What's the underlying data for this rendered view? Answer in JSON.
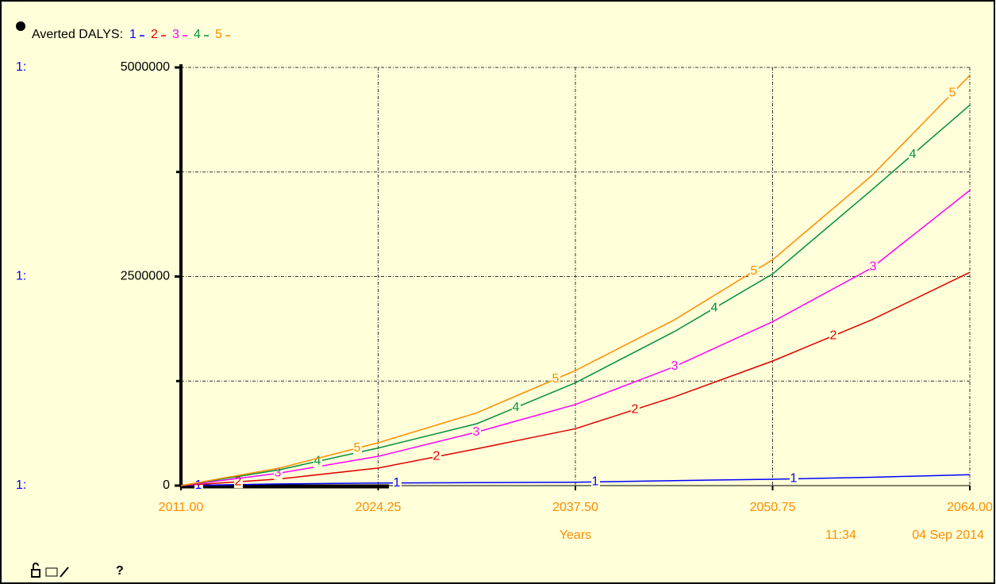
{
  "chart_data": {
    "type": "line",
    "title": "Averted DALYS:",
    "axis_prefix": "1:",
    "xlabel": "Years",
    "timestamp_time": "11:34",
    "timestamp_date": "04 Sep 2014",
    "help_label": "?",
    "x": [
      2011,
      2017.625,
      2024.25,
      2030.875,
      2037.5,
      2044.125,
      2050.75,
      2057.375,
      2064
    ],
    "series": [
      {
        "name": "1",
        "color": "#0000ff",
        "values": [
          0,
          20000,
          30000,
          35000,
          40000,
          60000,
          76000,
          100000,
          130000
        ]
      },
      {
        "name": "2",
        "color": "#e00000",
        "values": [
          0,
          80000,
          210000,
          440000,
          680000,
          1060000,
          1490000,
          1980000,
          2550000
        ]
      },
      {
        "name": "3",
        "color": "#ff00ff",
        "values": [
          0,
          150000,
          350000,
          640000,
          970000,
          1420000,
          1960000,
          2600000,
          3530000
        ]
      },
      {
        "name": "4",
        "color": "#009040",
        "values": [
          0,
          190000,
          450000,
          740000,
          1230000,
          1840000,
          2530000,
          3530000,
          4550000
        ]
      },
      {
        "name": "5",
        "color": "#ff8c00",
        "values": [
          0,
          210000,
          512000,
          870000,
          1376000,
          1980000,
          2700000,
          3700000,
          4905000
        ]
      }
    ],
    "xlim": [
      2011,
      2064
    ],
    "xticks": [
      {
        "value": 2011,
        "label": "2011.00"
      },
      {
        "value": 2024.25,
        "label": "2024.25"
      },
      {
        "value": 2037.5,
        "label": "2037.50"
      },
      {
        "value": 2050.75,
        "label": "2050.75"
      },
      {
        "value": 2064,
        "label": "2064.00"
      }
    ],
    "ylim": [
      0,
      5000000
    ],
    "yticks": [
      0,
      2500000,
      5000000
    ],
    "minor_yticks": [
      1250000,
      3750000
    ],
    "grid": true
  }
}
